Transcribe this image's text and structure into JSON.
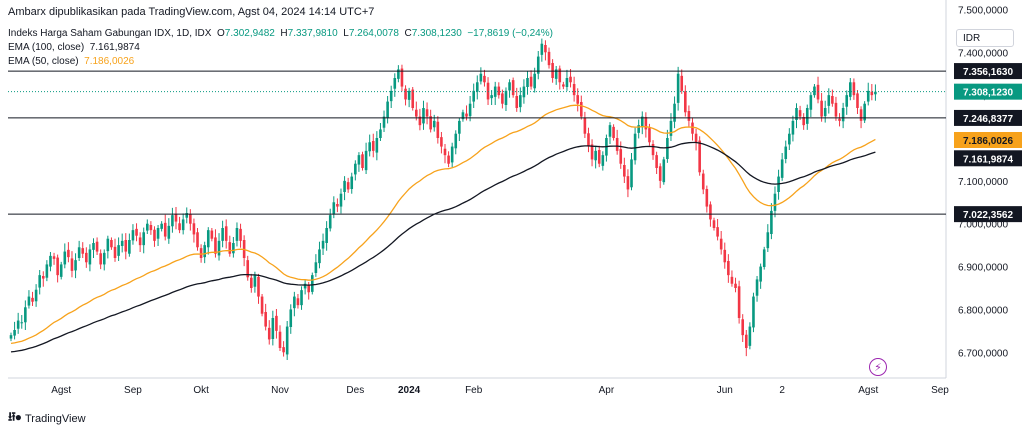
{
  "publish_line": "Ambarx dipublikasikan pada TradingView.com, Agst 04, 2024 14:14 UTC+7",
  "legend": {
    "symbol": "Indeks Harga Saham Gabungan IDX, 1D, IDX",
    "o_label": "O",
    "o": "7.302,9482",
    "h_label": "H",
    "h": "7.337,9810",
    "l_label": "L",
    "l": "7.264,0078",
    "c_label": "C",
    "c": "7.308,1230",
    "change": "−17,8619 (−0,24%)",
    "ema100_label": "EMA (100, close)",
    "ema100": "7.161,9874",
    "ema50_label": "EMA (50, close)",
    "ema50": "7.186,0026"
  },
  "axis_unit": "IDR",
  "footer_logo": "TradingView",
  "colors": {
    "up": "#089981",
    "down": "#f23645",
    "ema50": "#f7a21b",
    "ema100": "#131722",
    "grid": "#f0f3fa"
  },
  "chart_data": {
    "type": "candlestick",
    "ylim": [
      6640000,
      7480000
    ],
    "y_unit_divisor": 1000,
    "yticks": [
      "7.500,0000",
      "7.400,0000",
      "7.300,0000",
      "7.200,0000",
      "7.100,0000",
      "7.000,0000",
      "6.900,0000",
      "6.800,0000",
      "6.700,0000"
    ],
    "ytick_values": [
      7500,
      7400,
      7300,
      7200,
      7100,
      7000,
      6900,
      6800,
      6700
    ],
    "xticks": [
      {
        "label": "Agst",
        "i": 14
      },
      {
        "label": "Sep",
        "i": 34
      },
      {
        "label": "Okt",
        "i": 53
      },
      {
        "label": "Nov",
        "i": 75
      },
      {
        "label": "Des",
        "i": 96
      },
      {
        "label": "2024",
        "i": 111,
        "bold": true
      },
      {
        "label": "Feb",
        "i": 129
      },
      {
        "label": "Apr",
        "i": 166
      },
      {
        "label": "Jun",
        "i": 199
      },
      {
        "label": "2",
        "i": 215
      },
      {
        "label": "Agst",
        "i": 239
      },
      {
        "label": "Sep",
        "i": 259
      }
    ],
    "hlines": [
      {
        "value": 7356.163,
        "label": "7.356,1630"
      },
      {
        "value": 7246.8377,
        "label": "7.246,8377"
      },
      {
        "value": 7022.3562,
        "label": "7.022,3562"
      }
    ],
    "last_price": {
      "value": 7308.123,
      "label": "7.308,1230"
    },
    "ema50_last": {
      "value": 7186.0026,
      "label": "7.186,0026"
    },
    "ema100_last": {
      "value": 7161.9874,
      "label": "7.161,9874"
    },
    "closes": [
      6740,
      6752,
      6774,
      6770,
      6805,
      6830,
      6818,
      6846,
      6880,
      6872,
      6905,
      6925,
      6918,
      6880,
      6905,
      6935,
      6922,
      6890,
      6915,
      6945,
      6930,
      6910,
      6940,
      6955,
      6935,
      6905,
      6932,
      6965,
      6945,
      6920,
      6950,
      6960,
      6935,
      6962,
      6985,
      6972,
      6950,
      6980,
      7000,
      6985,
      6960,
      6990,
      7000,
      6970,
      6995,
      7020,
      7005,
      6985,
      7010,
      7025,
      7000,
      6975,
      6945,
      6920,
      6950,
      6985,
      6965,
      6930,
      6960,
      6990,
      6960,
      6930,
      6955,
      6990,
      6960,
      6920,
      6875,
      6850,
      6880,
      6830,
      6790,
      6760,
      6730,
      6780,
      6750,
      6710,
      6700,
      6760,
      6800,
      6830,
      6810,
      6845,
      6860,
      6840,
      6880,
      6910,
      6940,
      6960,
      6990,
      7020,
      7050,
      7040,
      7070,
      7100,
      7080,
      7110,
      7140,
      7160,
      7130,
      7170,
      7190,
      7170,
      7200,
      7220,
      7250,
      7285,
      7310,
      7340,
      7360,
      7320,
      7290,
      7310,
      7270,
      7250,
      7230,
      7270,
      7250,
      7220,
      7240,
      7200,
      7180,
      7160,
      7140,
      7180,
      7210,
      7240,
      7260,
      7250,
      7280,
      7310,
      7330,
      7350,
      7330,
      7290,
      7300,
      7320,
      7300,
      7280,
      7310,
      7330,
      7300,
      7270,
      7300,
      7320,
      7340,
      7320,
      7350,
      7390,
      7420,
      7400,
      7370,
      7340,
      7360,
      7330,
      7320,
      7340,
      7330,
      7300,
      7280,
      7250,
      7210,
      7180,
      7150,
      7170,
      7140,
      7160,
      7200,
      7230,
      7200,
      7170,
      7140,
      7110,
      7080,
      7150,
      7210,
      7230,
      7250,
      7220,
      7190,
      7160,
      7130,
      7100,
      7150,
      7200,
      7240,
      7280,
      7350,
      7310,
      7260,
      7240,
      7210,
      7190,
      7120,
      7080,
      7040,
      7010,
      6990,
      6970,
      6940,
      6910,
      6880,
      6860,
      6850,
      6780,
      6740,
      6710,
      6760,
      6830,
      6870,
      6900,
      6940,
      6980,
      7030,
      7070,
      7110,
      7150,
      7180,
      7210,
      7240,
      7270,
      7250,
      7230,
      7270,
      7300,
      7320,
      7290,
      7250,
      7270,
      7300,
      7280,
      7250,
      7240,
      7270,
      7300,
      7330,
      7300,
      7270,
      7240,
      7280,
      7310,
      7300,
      7308
    ],
    "ema_series": [
      {
        "name": "EMA (50, close)",
        "period": 50,
        "color": "#f7a21b"
      },
      {
        "name": "EMA (100, close)",
        "period": 100,
        "color": "#131722"
      }
    ]
  }
}
